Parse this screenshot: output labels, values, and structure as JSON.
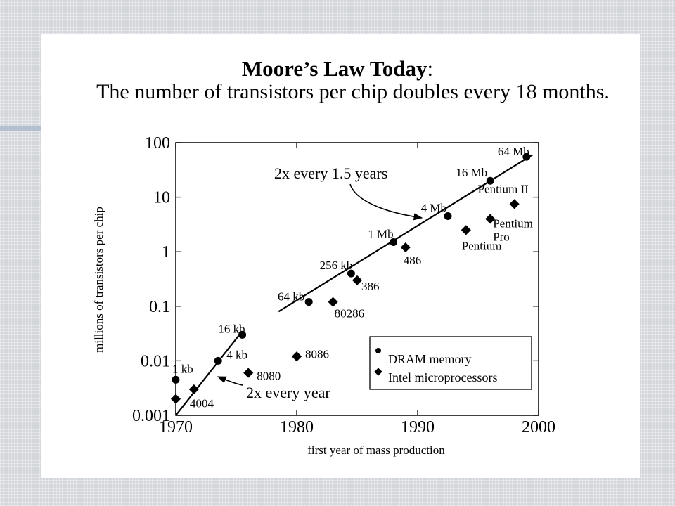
{
  "title_bold": "Moore’s Law Today",
  "title_colon": ":",
  "subtitle": "The number of transistors per chip doubles every 18 months.",
  "colors": {
    "ink": "#000000",
    "slide": "#ffffff",
    "background": "#d3d6da",
    "accent": "#b3c0d0"
  },
  "chart_data": {
    "type": "scatter",
    "title": "",
    "xlabel": "first year of mass production",
    "ylabel": "millions of transistors per chip",
    "xlim": [
      1970,
      2000
    ],
    "ylim": [
      0.001,
      100
    ],
    "yscale": "log",
    "x_ticks": [
      1970,
      1980,
      1990,
      2000
    ],
    "x_tick_labels": [
      "1970",
      "1980",
      "1990",
      "2000"
    ],
    "y_ticks": [
      0.001,
      0.01,
      0.1,
      1,
      10,
      100
    ],
    "y_tick_labels": [
      "0.001",
      "0.01",
      "0.1",
      "1",
      "10",
      "100"
    ],
    "grid": false,
    "legend": {
      "position": "bottom-right",
      "entries": [
        "DRAM memory",
        "Intel microprocessors"
      ]
    },
    "series": [
      {
        "name": "DRAM memory",
        "points": [
          {
            "label": "1 kb",
            "x": 1970,
            "y": 0.0045
          },
          {
            "label": "4 kb",
            "x": 1973.5,
            "y": 0.01
          },
          {
            "label": "16 kb",
            "x": 1975.5,
            "y": 0.03
          },
          {
            "label": "64 kb",
            "x": 1981,
            "y": 0.12
          },
          {
            "label": "256 kb",
            "x": 1984.5,
            "y": 0.4
          },
          {
            "label": "1 Mb",
            "x": 1988,
            "y": 1.5
          },
          {
            "label": "4 Mb",
            "x": 1992.5,
            "y": 4.5
          },
          {
            "label": "16 Mb",
            "x": 1996,
            "y": 20
          },
          {
            "label": "64 Mb",
            "x": 1999,
            "y": 55
          }
        ]
      },
      {
        "name": "Intel microprocessors",
        "points": [
          {
            "label": "4004",
            "x": 1970,
            "y": 0.002
          },
          {
            "label": "",
            "x": 1971.5,
            "y": 0.003
          },
          {
            "label": "8080",
            "x": 1976,
            "y": 0.006
          },
          {
            "label": "8086",
            "x": 1980,
            "y": 0.012
          },
          {
            "label": "80286",
            "x": 1983,
            "y": 0.12
          },
          {
            "label": "386",
            "x": 1985,
            "y": 0.3
          },
          {
            "label": "486",
            "x": 1989,
            "y": 1.2
          },
          {
            "label": "Pentium",
            "x": 1994,
            "y": 2.5
          },
          {
            "label": "Pentium Pro",
            "x": 1996,
            "y": 4
          },
          {
            "label": "Pentium II",
            "x": 1998,
            "y": 7.5
          }
        ]
      }
    ],
    "trend_lines": [
      {
        "from": [
          1970,
          0.001
        ],
        "to": [
          1975.5,
          0.035
        ]
      },
      {
        "from": [
          1978.5,
          0.08
        ],
        "to": [
          1999.5,
          60
        ]
      }
    ],
    "annotations": [
      {
        "text": "2x every year"
      },
      {
        "text": "2x every 1.5 years"
      }
    ]
  }
}
